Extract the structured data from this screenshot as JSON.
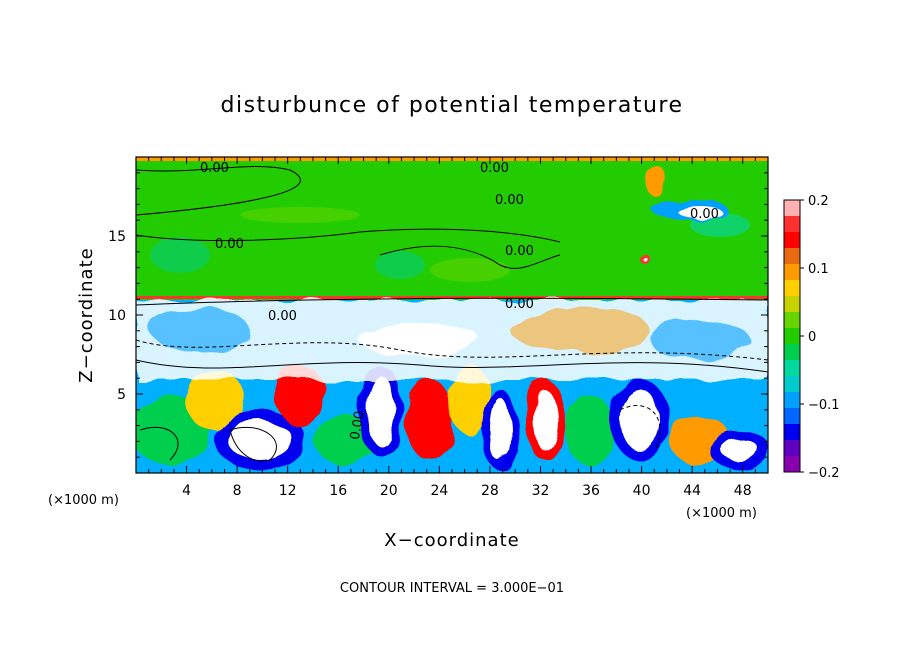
{
  "chart_data": {
    "type": "heatmap",
    "title": "disturbunce of potential temperature",
    "xlabel": "X−coordinate",
    "ylabel": "Z−coordinate",
    "x_unit": "(×1000 m)",
    "z_unit": "(×1000 m)",
    "xlim": [
      0,
      50
    ],
    "zlim": [
      0,
      20
    ],
    "x_ticks": [
      "4",
      "8",
      "12",
      "16",
      "20",
      "24",
      "28",
      "32",
      "36",
      "40",
      "44",
      "48"
    ],
    "z_ticks": [
      "5",
      "10",
      "15"
    ],
    "colorbar": {
      "range": [
        -0.2,
        0.2
      ],
      "ticks": [
        "0.2",
        "0.1",
        "0",
        "−0.1",
        "−0.2"
      ],
      "colors": [
        "#ffb0b0",
        "#ff3030",
        "#ff0000",
        "#e86a10",
        "#ff9a00",
        "#ffd000",
        "#c8d200",
        "#66d400",
        "#22cc00",
        "#00ce4e",
        "#00d8a0",
        "#00cccc",
        "#00a0ff",
        "#0066ff",
        "#0000ee",
        "#6000c0",
        "#8800b0"
      ]
    },
    "contour_labels": [
      "0.00",
      "0.00",
      "0.00",
      "0.00",
      "0.00",
      "0.00",
      "0.00",
      "0.00",
      "0.00"
    ],
    "note": "CONTOUR INTERVAL =  3.000E−01",
    "colors": {
      "upper_background": "#22cc00",
      "lower_background": "#00b0ff",
      "tropopause_line": "#ff8800"
    }
  }
}
